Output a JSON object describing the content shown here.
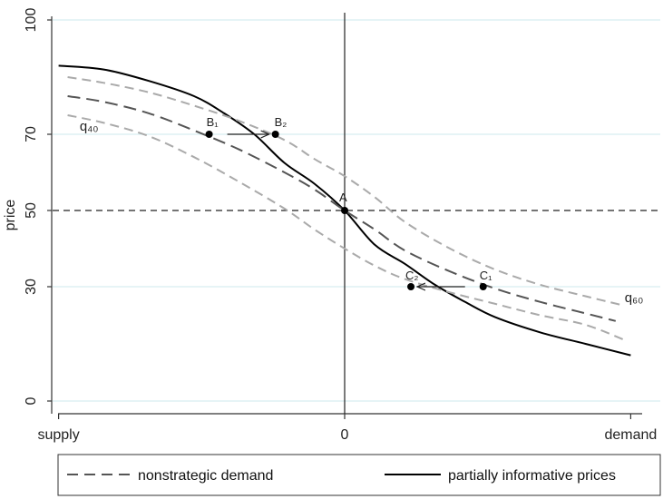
{
  "chart_data": {
    "type": "line",
    "ylabel": "price",
    "ylim": [
      0,
      100
    ],
    "xlim": [
      -1,
      1
    ],
    "y_ticks": [
      0,
      30,
      50,
      70,
      100
    ],
    "x_ticks": [
      {
        "value": -0.95,
        "label": "supply"
      },
      {
        "value": 0,
        "label": "0"
      },
      {
        "value": 0.95,
        "label": "demand"
      }
    ],
    "grid": "horizontal",
    "reference_lines": {
      "horizontal_dashed": 50,
      "vertical_solid": 0
    },
    "series": [
      {
        "name": "partially informative prices",
        "style": "solid",
        "color": "#000000",
        "x": [
          -0.95,
          -0.8,
          -0.65,
          -0.5,
          -0.4,
          -0.3,
          -0.2,
          -0.1,
          0,
          0.1,
          0.2,
          0.3,
          0.4,
          0.5,
          0.65,
          0.8,
          0.95
        ],
        "y": [
          88,
          87,
          84,
          80,
          75.5,
          70,
          62.5,
          57,
          50,
          41,
          36,
          30.5,
          26,
          22,
          18,
          15,
          12
        ]
      },
      {
        "name": "nonstrategic demand",
        "style": "dashed",
        "color": "#555555",
        "x": [
          -0.92,
          -0.8,
          -0.65,
          -0.5,
          -0.35,
          -0.2,
          -0.1,
          0,
          0.1,
          0.2,
          0.35,
          0.5,
          0.65,
          0.8,
          0.9
        ],
        "y": [
          80,
          78.5,
          75.5,
          71,
          66,
          60,
          55.5,
          50,
          45,
          39.5,
          34,
          29.5,
          26,
          23,
          21
        ]
      },
      {
        "style": "dashed",
        "color": "#aaaaaa",
        "x": [
          -0.92,
          -0.8,
          -0.65,
          -0.5,
          -0.35,
          -0.2,
          -0.1,
          0,
          0.1,
          0.2,
          0.35,
          0.5,
          0.65,
          0.8,
          0.93
        ],
        "y": [
          85,
          83.5,
          81,
          77.5,
          73.5,
          68.5,
          63.5,
          59,
          53.5,
          47,
          40,
          34.5,
          30.5,
          27.5,
          25
        ]
      },
      {
        "style": "dashed",
        "color": "#aaaaaa",
        "x": [
          -0.92,
          -0.8,
          -0.65,
          -0.5,
          -0.35,
          -0.2,
          -0.1,
          0,
          0.1,
          0.2,
          0.35,
          0.5,
          0.65,
          0.8,
          0.93
        ],
        "y": [
          75,
          73,
          69.5,
          64,
          57.5,
          50.5,
          45,
          40,
          35.5,
          32,
          28.5,
          25.5,
          22.5,
          20,
          16
        ]
      }
    ],
    "points": [
      {
        "label": "A",
        "x": 0,
        "y": 50
      },
      {
        "label": "B₁",
        "x": -0.45,
        "y": 70
      },
      {
        "label": "B₂",
        "x": -0.23,
        "y": 70
      },
      {
        "label": "C₁",
        "x": 0.46,
        "y": 30
      },
      {
        "label": "C₂",
        "x": 0.22,
        "y": 30
      }
    ],
    "arrows": [
      {
        "from": "B₁",
        "to": "B₂"
      },
      {
        "from": "C₁",
        "to": "C₂"
      }
    ],
    "annotations": [
      {
        "text": "q₄₀",
        "x": -0.88,
        "y": 71
      },
      {
        "text": "q₆₀",
        "x": 0.93,
        "y": 26
      }
    ],
    "legend": {
      "position": "bottom",
      "entries": [
        {
          "label": "nonstrategic demand",
          "style": "dashed"
        },
        {
          "label": "partially informative prices",
          "style": "solid"
        }
      ]
    }
  }
}
